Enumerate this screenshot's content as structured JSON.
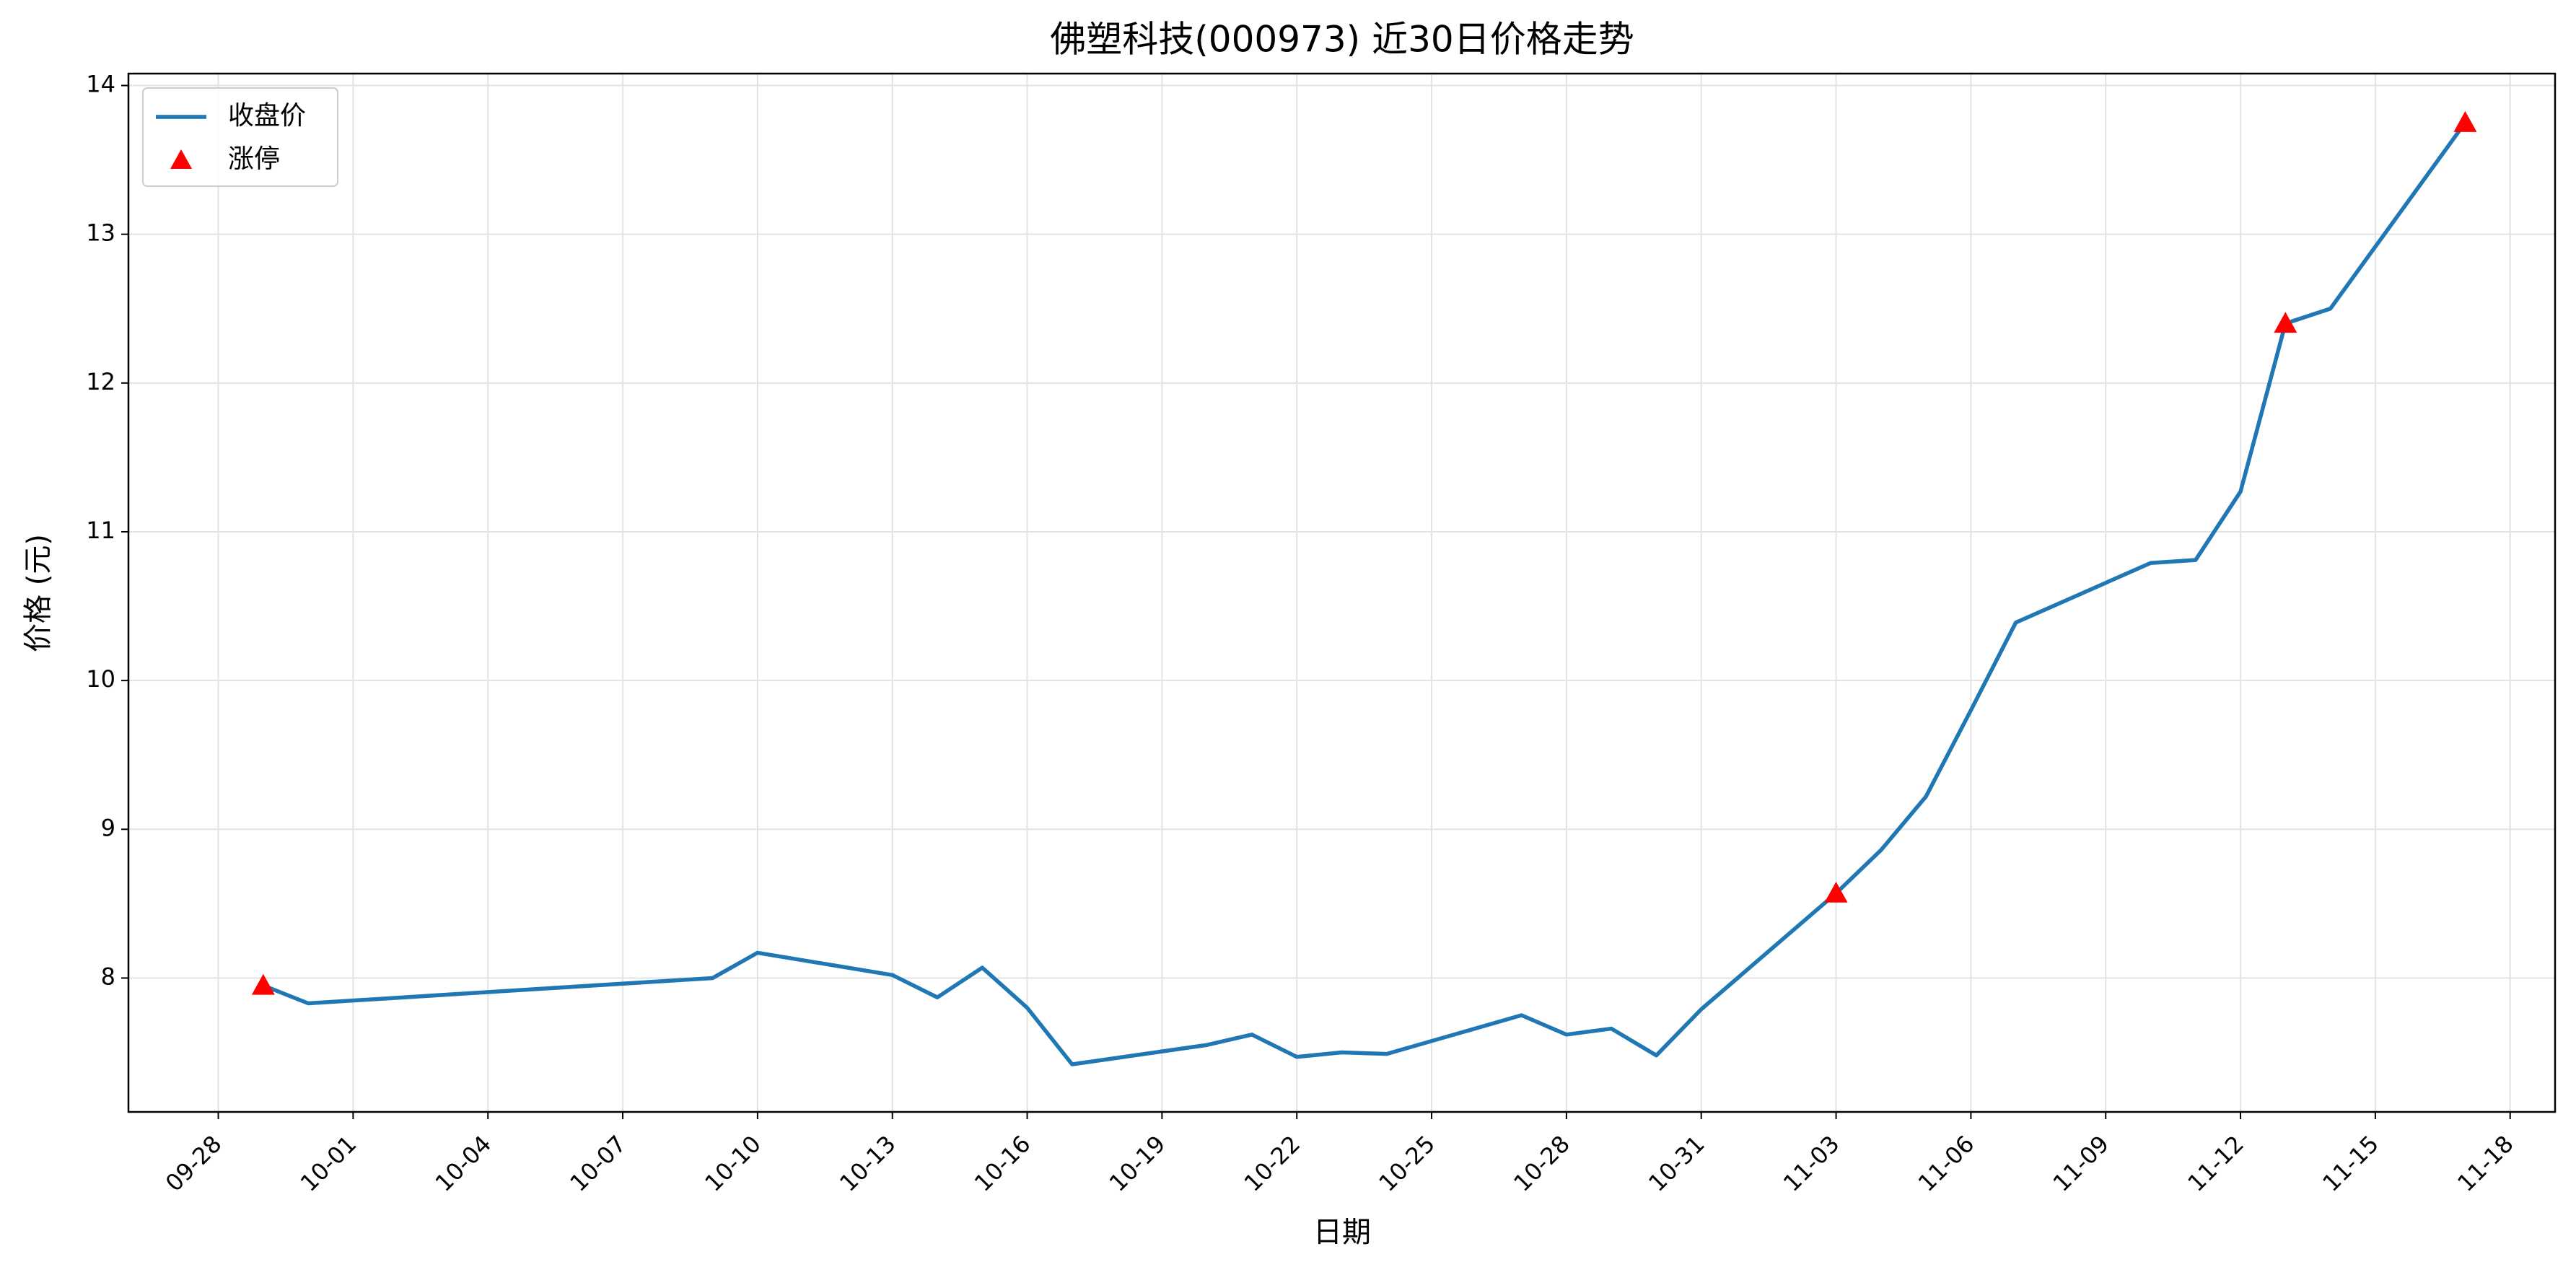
{
  "chart_data": {
    "type": "line",
    "title": "佛塑科技(000973) 近30日价格走势",
    "x_label": "日期",
    "y_label": "价格 (元)",
    "x": [
      "09-29",
      "09-30",
      "10-09",
      "10-10",
      "10-13",
      "10-14",
      "10-15",
      "10-16",
      "10-17",
      "10-20",
      "10-21",
      "10-22",
      "10-23",
      "10-24",
      "10-27",
      "10-28",
      "10-29",
      "10-30",
      "10-31",
      "11-03",
      "11-04",
      "11-05",
      "11-06",
      "11-07",
      "11-10",
      "11-11",
      "11-12",
      "11-13",
      "11-14",
      "11-17"
    ],
    "series": [
      {
        "name": "收盘价",
        "color": "#1f77b4",
        "values": [
          7.95,
          7.83,
          8.0,
          8.17,
          8.02,
          7.87,
          8.07,
          7.8,
          7.42,
          7.55,
          7.62,
          7.47,
          7.5,
          7.49,
          7.75,
          7.62,
          7.66,
          7.48,
          7.79,
          8.57,
          8.86,
          9.22,
          9.8,
          10.39,
          10.79,
          10.81,
          11.27,
          12.4,
          12.5,
          13.75
        ]
      },
      {
        "name": "涨停",
        "type": "scatter",
        "marker": "triangle",
        "color": "#ff0000",
        "x": [
          "09-29",
          "11-03",
          "11-13",
          "11-17"
        ],
        "values": [
          7.95,
          8.57,
          12.4,
          13.75
        ]
      }
    ],
    "xlim": [
      "09-26",
      "11-19"
    ],
    "xticks": [
      "09-28",
      "10-01",
      "10-04",
      "10-07",
      "10-10",
      "10-13",
      "10-16",
      "10-19",
      "10-22",
      "10-25",
      "10-28",
      "10-31",
      "11-03",
      "11-06",
      "11-09",
      "11-12",
      "11-15",
      "11-18"
    ],
    "ylim": [
      7.1,
      14.08
    ],
    "yticks": [
      8,
      9,
      10,
      11,
      12,
      13,
      14
    ],
    "grid": true,
    "legend": "upper-left"
  }
}
